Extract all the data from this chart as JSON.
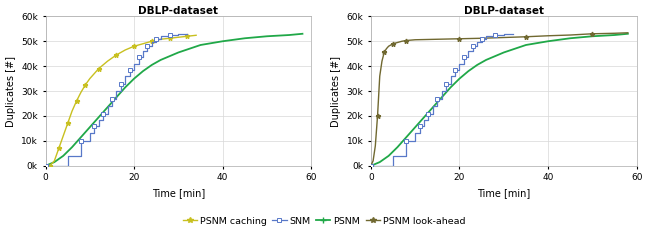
{
  "title": "DBLP-dataset",
  "xlabel": "Time [min]",
  "ylabel": "Duplicates [#]",
  "xlim": [
    0,
    60
  ],
  "ylim": [
    0,
    60000
  ],
  "yticks": [
    0,
    10000,
    20000,
    30000,
    40000,
    50000,
    60000
  ],
  "ytick_labels": [
    "0k",
    "10k",
    "20k",
    "30k",
    "40k",
    "50k",
    "60k"
  ],
  "xticks": [
    0,
    20,
    40,
    60
  ],
  "psnm_caching_color": "#c8c020",
  "snm_color": "#5878c8",
  "psnm_color": "#20a848",
  "psnm_lookahead_color": "#706830",
  "left_psnm_caching": {
    "x": [
      1,
      2,
      3,
      4,
      5,
      6,
      7,
      8,
      9,
      10,
      12,
      14,
      16,
      18,
      20,
      22,
      24,
      26,
      28,
      30,
      32,
      34
    ],
    "y": [
      0,
      2000,
      7000,
      12000,
      17000,
      22000,
      26000,
      29500,
      32500,
      35000,
      39000,
      42000,
      44500,
      46500,
      48000,
      49000,
      50000,
      50800,
      51200,
      51600,
      52000,
      52400
    ]
  },
  "left_snm": {
    "x": [
      0,
      5,
      5,
      8,
      8,
      10,
      10,
      11,
      11,
      12,
      12,
      13,
      13,
      14,
      14,
      15,
      15,
      16,
      16,
      17,
      17,
      18,
      18,
      19,
      19,
      20,
      20,
      21,
      21,
      22,
      22,
      23,
      23,
      24,
      24,
      25,
      25,
      26,
      26,
      28,
      28,
      30,
      30,
      32
    ],
    "y": [
      0,
      0,
      4000,
      4000,
      10000,
      10000,
      13000,
      13000,
      16000,
      16000,
      18500,
      18500,
      21000,
      21000,
      24000,
      24000,
      27000,
      27000,
      30000,
      30000,
      33000,
      33000,
      36000,
      36000,
      38500,
      38500,
      41000,
      41000,
      43500,
      43500,
      46000,
      46000,
      48000,
      48000,
      49500,
      49500,
      51000,
      51000,
      52000,
      52000,
      52500,
      52500,
      53000,
      53000
    ]
  },
  "left_psnm": {
    "x": [
      0,
      2,
      4,
      6,
      8,
      10,
      12,
      14,
      16,
      18,
      20,
      22,
      24,
      26,
      28,
      30,
      35,
      40,
      45,
      50,
      55,
      58
    ],
    "y": [
      0,
      1500,
      4000,
      7500,
      11500,
      15500,
      19500,
      23500,
      27500,
      31500,
      35000,
      38000,
      40500,
      42500,
      44000,
      45500,
      48500,
      50000,
      51200,
      52000,
      52500,
      53000
    ]
  },
  "right_psnm_lookahead": {
    "x": [
      0,
      0.5,
      1,
      1.5,
      2,
      2.5,
      3,
      3.5,
      4,
      5,
      6,
      7,
      8,
      10,
      15,
      20,
      25,
      30,
      35,
      40,
      45,
      50,
      55,
      58
    ],
    "y": [
      0,
      2000,
      8000,
      20000,
      36000,
      42000,
      45500,
      47000,
      48000,
      49000,
      49500,
      50000,
      50300,
      50600,
      50800,
      51000,
      51200,
      51500,
      51800,
      52200,
      52500,
      53000,
      53200,
      53400
    ]
  },
  "right_snm": {
    "x": [
      0,
      5,
      5,
      8,
      8,
      10,
      10,
      11,
      11,
      12,
      12,
      13,
      13,
      14,
      14,
      15,
      15,
      16,
      16,
      17,
      17,
      18,
      18,
      19,
      19,
      20,
      20,
      21,
      21,
      22,
      22,
      23,
      23,
      24,
      24,
      25,
      25,
      26,
      26,
      28,
      28,
      30,
      30,
      32
    ],
    "y": [
      0,
      0,
      4000,
      4000,
      10000,
      10000,
      13000,
      13000,
      16000,
      16000,
      18500,
      18500,
      21000,
      21000,
      24000,
      24000,
      27000,
      27000,
      30000,
      30000,
      33000,
      33000,
      36000,
      36000,
      38500,
      38500,
      41000,
      41000,
      43500,
      43500,
      46000,
      46000,
      48000,
      48000,
      49500,
      49500,
      51000,
      51000,
      52000,
      52000,
      52500,
      52500,
      53000,
      53000
    ]
  },
  "right_psnm": {
    "x": [
      0,
      2,
      4,
      6,
      8,
      10,
      12,
      14,
      16,
      18,
      20,
      22,
      24,
      26,
      28,
      30,
      35,
      40,
      45,
      50,
      55,
      58
    ],
    "y": [
      0,
      1500,
      4000,
      7500,
      11500,
      15500,
      19500,
      23500,
      27500,
      31500,
      35000,
      38000,
      40500,
      42500,
      44000,
      45500,
      48500,
      50000,
      51200,
      52000,
      52500,
      53000
    ]
  }
}
